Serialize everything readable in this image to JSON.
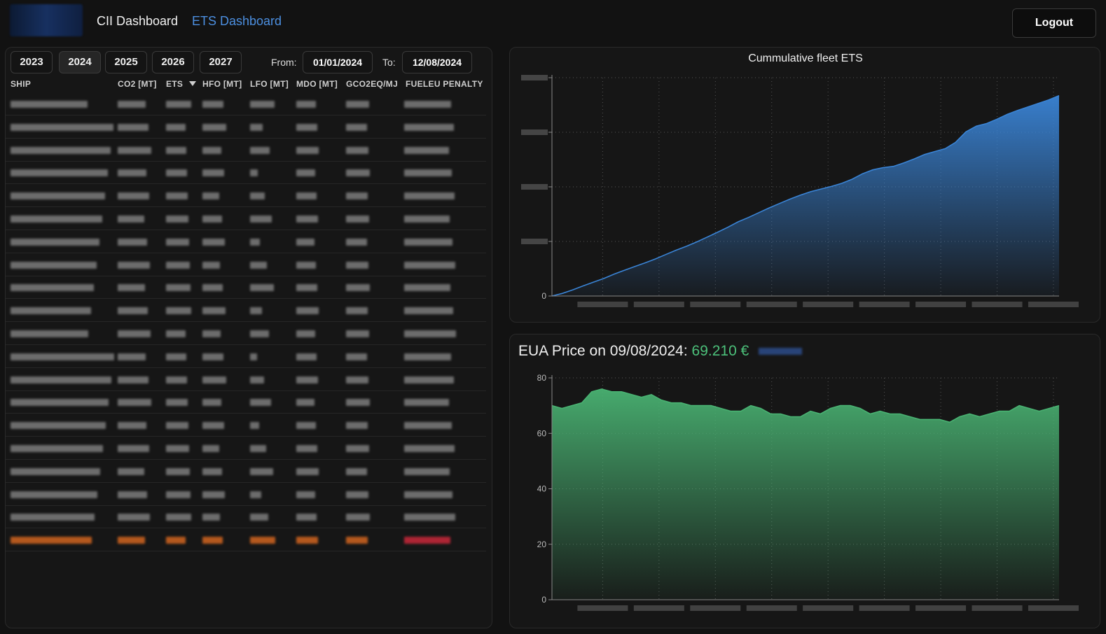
{
  "header": {
    "nav": [
      {
        "label": "CII Dashboard"
      },
      {
        "label": "ETS Dashboard"
      }
    ],
    "logout_label": "Logout"
  },
  "filters": {
    "years": [
      "2023",
      "2024",
      "2025",
      "2026",
      "2027"
    ],
    "selected_year": "2024",
    "from_label": "From:",
    "from_value": "01/01/2024",
    "to_label": "To:",
    "to_value": "12/08/2024"
  },
  "table": {
    "columns": [
      "SHIP",
      "CO2 [MT]",
      "ETS",
      "HFO [MT]",
      "LFO [MT]",
      "MDO [MT]",
      "GCO2EQ/MJ",
      "FUELEU PENALTY"
    ],
    "sort_column": "ETS",
    "row_count_visible": 20,
    "total_row_highlighted": true,
    "note_values_redacted": true
  },
  "charts": {
    "fleet_ets_title": "Cummulative fleet ETS",
    "eua_title_prefix": "EUA Price on 09/08/2024:",
    "eua_price": "69.210 €"
  },
  "colors": {
    "accent_blue": "#4c8fe0",
    "ets_area": "#3a84d6",
    "eua_area": "#49b272",
    "price_green": "#4cc07a",
    "total_row": "#d0641f",
    "penalty_total": "#c8283a"
  },
  "chart_data": [
    {
      "type": "area",
      "title": "Cummulative fleet ETS",
      "x_tick_labels_redacted": true,
      "y_tick_labels_redacted": true,
      "y_ticks_visible": [
        "0"
      ],
      "grid": true,
      "series": [
        {
          "values": [
            0,
            0.012,
            0.028,
            0.046,
            0.063,
            0.08,
            0.1,
            0.118,
            0.135,
            0.152,
            0.17,
            0.19,
            0.21,
            0.228,
            0.248,
            0.27,
            0.292,
            0.315,
            0.34,
            0.36,
            0.382,
            0.404,
            0.424,
            0.444,
            0.462,
            0.478,
            0.49,
            0.502,
            0.516,
            0.535,
            0.56,
            0.578,
            0.588,
            0.594,
            0.61,
            0.628,
            0.648,
            0.662,
            0.675,
            0.704,
            0.752,
            0.778,
            0.79,
            0.81,
            0.832,
            0.85,
            0.866,
            0.882,
            0.898,
            0.918
          ]
        }
      ]
    },
    {
      "type": "area",
      "title": "EUA Price on 09/08/2024",
      "x_tick_labels_redacted": true,
      "yticks": [
        0,
        20,
        40,
        60,
        80
      ],
      "ylim": [
        0,
        80
      ],
      "grid": true,
      "series": [
        {
          "values": [
            70,
            69,
            70,
            71,
            75,
            76,
            75,
            75,
            74,
            73,
            74,
            72,
            71,
            71,
            70,
            70,
            70,
            69,
            68,
            68,
            70,
            69,
            67,
            67,
            66,
            66,
            68,
            67,
            69,
            70,
            70,
            69,
            67,
            68,
            67,
            67,
            66,
            65,
            65,
            65,
            64,
            66,
            67,
            66,
            67,
            68,
            68,
            70,
            69,
            68,
            69,
            70
          ]
        }
      ]
    }
  ]
}
